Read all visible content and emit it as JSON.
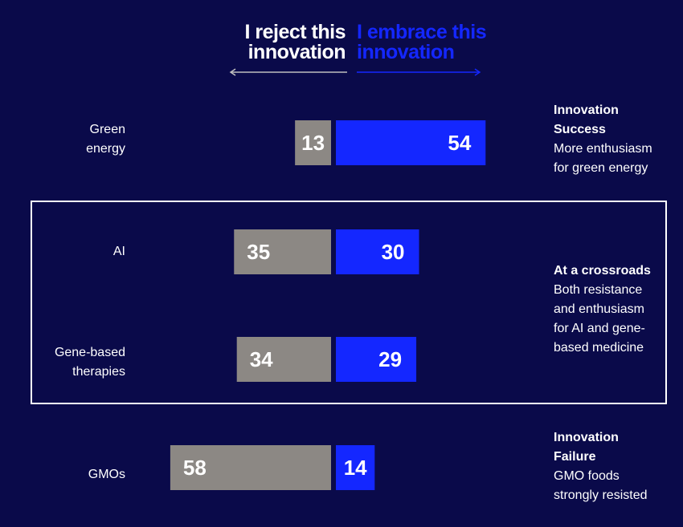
{
  "header": {
    "reject_label": "I reject this innovation",
    "embrace_label": "I embrace this innovation"
  },
  "colors": {
    "background": "#0a0a4a",
    "reject": "#8c8884",
    "embrace": "#1427ff",
    "text": "#ffffff"
  },
  "chart_data": {
    "type": "bar",
    "orientation": "diverging-horizontal",
    "categories": [
      "Green energy",
      "AI",
      "Gene-based therapies",
      "GMOs"
    ],
    "series": [
      {
        "name": "I reject this innovation",
        "values": [
          13,
          35,
          34,
          58
        ]
      },
      {
        "name": "I embrace this innovation",
        "values": [
          54,
          30,
          29,
          14
        ]
      }
    ],
    "data_labels": true,
    "grid": false
  },
  "annotations": [
    {
      "title": "Innovation Success",
      "desc": "More enthusiasm for green energy"
    },
    {
      "title": "At a crossroads",
      "desc": "Both resistance and enthusiasm for AI and gene-based medicine"
    },
    {
      "title": "Innovation Failure",
      "desc": "GMO foods strongly resisted"
    }
  ]
}
